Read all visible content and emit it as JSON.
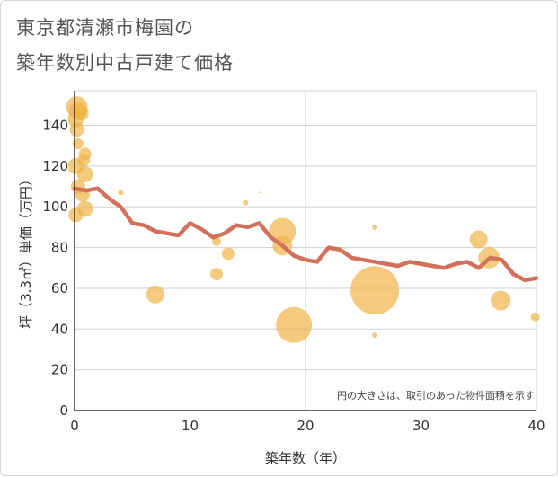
{
  "title_line1": "東京都清瀬市梅園の",
  "title_line2": "築年数別中古戸建て価格",
  "colors": {
    "bubble": "#f0b449",
    "line": "#d2705a",
    "grid": "#c9d3dc",
    "axis": "#333333"
  },
  "chart_data": {
    "type": "scatter",
    "xlabel": "築年数（年）",
    "ylabel": "坪（3.3㎡）単価（万円）",
    "xlim": [
      0,
      40
    ],
    "ylim": [
      0,
      157
    ],
    "xticks": [
      "0",
      "10",
      "20",
      "30",
      "40"
    ],
    "yticks": [
      "0",
      "20",
      "40",
      "60",
      "80",
      "100",
      "120",
      "140"
    ],
    "note": "円の大きさは、取引のあった物件面積を示す",
    "scatter": [
      {
        "x": 0.2,
        "y": 149,
        "r": 12
      },
      {
        "x": 0.3,
        "y": 147,
        "r": 10
      },
      {
        "x": 0.6,
        "y": 146,
        "r": 8
      },
      {
        "x": 0.1,
        "y": 143,
        "r": 9
      },
      {
        "x": 0.2,
        "y": 138,
        "r": 8
      },
      {
        "x": 0.3,
        "y": 131,
        "r": 6
      },
      {
        "x": 0.9,
        "y": 126,
        "r": 7
      },
      {
        "x": 0.8,
        "y": 123,
        "r": 7
      },
      {
        "x": 0.1,
        "y": 120,
        "r": 9
      },
      {
        "x": 0.9,
        "y": 116,
        "r": 9
      },
      {
        "x": 0.3,
        "y": 110,
        "r": 8
      },
      {
        "x": 0.7,
        "y": 106,
        "r": 8
      },
      {
        "x": 0.9,
        "y": 99,
        "r": 9
      },
      {
        "x": 0.1,
        "y": 96,
        "r": 8
      },
      {
        "x": 4,
        "y": 107,
        "r": 3
      },
      {
        "x": 7,
        "y": 57,
        "r": 10
      },
      {
        "x": 12.3,
        "y": 83,
        "r": 5
      },
      {
        "x": 12.3,
        "y": 67,
        "r": 7
      },
      {
        "x": 13.3,
        "y": 77,
        "r": 7
      },
      {
        "x": 14.8,
        "y": 102,
        "r": 3
      },
      {
        "x": 16,
        "y": 107,
        "r": 1
      },
      {
        "x": 18,
        "y": 88,
        "r": 15
      },
      {
        "x": 18,
        "y": 81,
        "r": 11
      },
      {
        "x": 19,
        "y": 42,
        "r": 20
      },
      {
        "x": 26,
        "y": 59,
        "r": 27
      },
      {
        "x": 26,
        "y": 90,
        "r": 3
      },
      {
        "x": 26,
        "y": 37,
        "r": 3
      },
      {
        "x": 35,
        "y": 84,
        "r": 10
      },
      {
        "x": 35.9,
        "y": 75,
        "r": 12
      },
      {
        "x": 36.9,
        "y": 54,
        "r": 11
      },
      {
        "x": 39.9,
        "y": 46,
        "r": 5
      }
    ],
    "line": {
      "x": [
        0,
        1,
        2,
        3,
        4,
        5,
        6,
        7,
        8,
        9,
        10,
        11,
        12,
        13,
        14,
        15,
        16,
        17,
        18,
        19,
        20,
        21,
        22,
        23,
        24,
        25,
        26,
        27,
        28,
        29,
        30,
        31,
        32,
        33,
        34,
        35,
        36,
        37,
        38,
        39,
        40
      ],
      "y": [
        109,
        108,
        109,
        104,
        100,
        92,
        91,
        88,
        87,
        86,
        92,
        89,
        85,
        87,
        91,
        90,
        92,
        85,
        81,
        76,
        74,
        73,
        80,
        79,
        75,
        74,
        73,
        72,
        71,
        73,
        72,
        71,
        70,
        72,
        73,
        70,
        75,
        74,
        67,
        64,
        65
      ]
    }
  }
}
